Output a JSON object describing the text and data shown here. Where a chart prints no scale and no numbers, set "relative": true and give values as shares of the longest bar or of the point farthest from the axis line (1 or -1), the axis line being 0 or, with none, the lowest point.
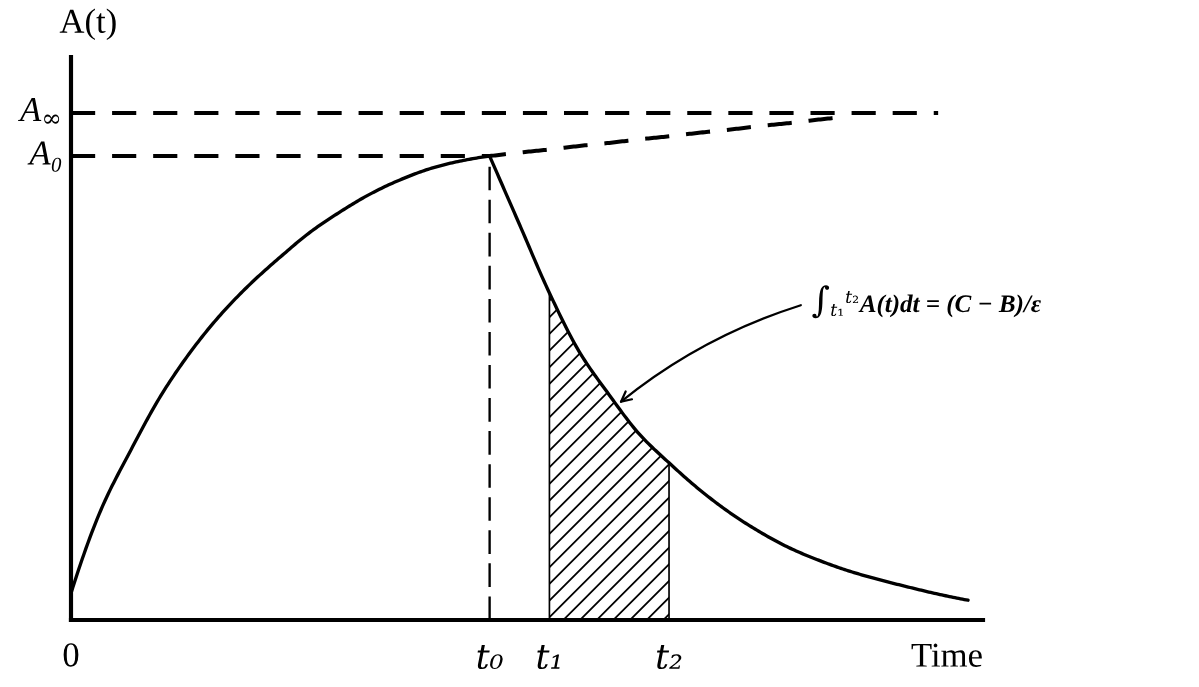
{
  "chart_data": {
    "type": "line",
    "relative": true,
    "xlabel": "Time",
    "ylabel": "A(t)",
    "categories": [
      "0",
      null,
      null,
      null,
      null,
      null,
      null,
      null,
      null,
      null,
      null,
      null,
      null,
      null,
      "t₀",
      null,
      "t₁",
      null,
      null,
      null,
      "t₂",
      null,
      null,
      null,
      null,
      null,
      null,
      null,
      null,
      null,
      null
    ],
    "annotations": [
      "∫$_{t₁}$$^{t₂}$A(t)dt = (C − B)/ε"
    ],
    "ref_lines": [
      {
        "axis": "x",
        "value": "t₀",
        "color": "#000000",
        "line_style": "dashed"
      }
    ],
    "series": [
      {
        "color": "#000000",
        "line_style": "solid",
        "values": [
          0.053,
          0.217,
          0.335,
          0.442,
          0.529,
          0.602,
          0.663,
          0.716,
          0.765,
          0.805,
          0.84,
          0.868,
          0.89,
          0.905,
          0.915,
          0.78,
          0.645,
          0.529,
          0.444,
          0.367,
          0.31,
          0.258,
          0.213,
          0.175,
          0.143,
          0.118,
          0.097,
          0.08,
          0.065,
          0.051,
          0.039
        ]
      },
      {
        "name": "A₀",
        "color": "#000000",
        "line_style": "dashed",
        "values": [
          0.915,
          0.915,
          0.915,
          0.915,
          0.915,
          0.915,
          0.915,
          0.915,
          0.915,
          0.915,
          0.915,
          0.915,
          0.915,
          0.915,
          0.915,
          0.922,
          0.928,
          0.935,
          0.941,
          0.948,
          0.954,
          0.961,
          0.967,
          0.974,
          0.98,
          0.987,
          0.993,
          null,
          null,
          null,
          null
        ]
      },
      {
        "name": "A$_{∞}$",
        "color": "#000000",
        "line_style": "dashed",
        "values": [
          1,
          1,
          1,
          1,
          1,
          1,
          1,
          1,
          1,
          1,
          1,
          1,
          1,
          1,
          1,
          1,
          1,
          1,
          1,
          1,
          1,
          1,
          1,
          1,
          1,
          1,
          1,
          1,
          1,
          1,
          null
        ]
      },
      {
        "type": "area",
        "color": "#000000",
        "values": [
          null,
          null,
          null,
          null,
          null,
          null,
          null,
          null,
          null,
          null,
          null,
          null,
          null,
          null,
          null,
          null,
          0.645,
          0.529,
          0.444,
          0.367,
          0.31,
          null,
          null,
          null,
          null,
          null,
          null,
          null,
          null,
          null,
          null
        ]
      }
    ]
  }
}
